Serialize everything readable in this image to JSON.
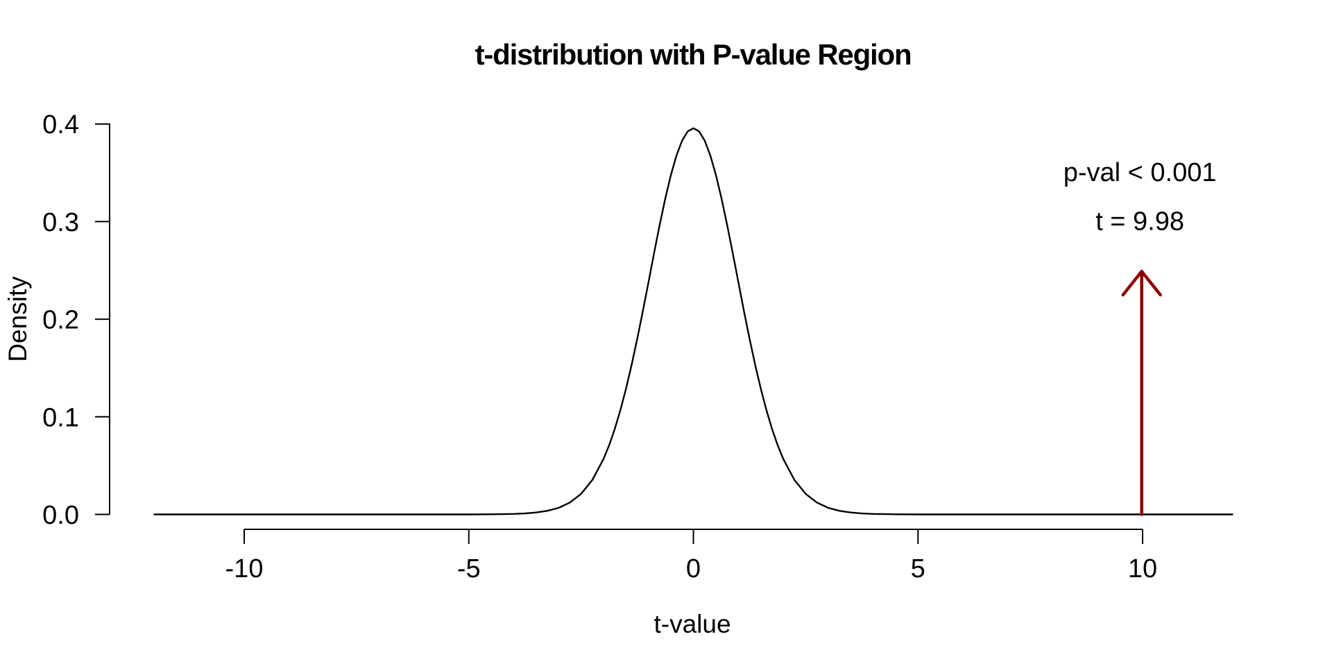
{
  "colors": {
    "background": "#FFFFFF",
    "text": "#000000",
    "curve": "#000000",
    "arrow": "#8B0000"
  },
  "chart_data": {
    "type": "line",
    "title": "t-distribution with P-value Region",
    "xlabel": "t-value",
    "ylabel": "Density",
    "xlim": [
      -12,
      12
    ],
    "ylim": [
      0,
      0.4
    ],
    "grid": false,
    "legend": "none",
    "x_ticks": {
      "values": [
        -10,
        -5,
        0,
        5,
        10
      ],
      "labels": [
        "-10",
        "-5",
        "0",
        "5",
        "10"
      ]
    },
    "y_ticks": {
      "values": [
        0,
        0.1,
        0.2,
        0.3,
        0.4
      ],
      "labels": [
        "0.0",
        "0.1",
        "0.2",
        "0.3",
        "0.4"
      ]
    },
    "series": [
      {
        "name": "t-density",
        "color": "#000000",
        "x": [
          -12,
          -10,
          -8,
          -7,
          -6,
          -5.5,
          -5,
          -4.5,
          -4,
          -3.75,
          -3.5,
          -3.25,
          -3,
          -2.75,
          -2.5,
          -2.25,
          -2,
          -1.875,
          -1.75,
          -1.625,
          -1.5,
          -1.375,
          -1.25,
          -1.125,
          -1,
          -0.875,
          -0.75,
          -0.625,
          -0.5,
          -0.375,
          -0.25,
          -0.125,
          0,
          0.125,
          0.25,
          0.375,
          0.5,
          0.625,
          0.75,
          0.875,
          1,
          1.125,
          1.25,
          1.375,
          1.5,
          1.625,
          1.75,
          1.875,
          2,
          2.25,
          2.5,
          2.75,
          3,
          3.25,
          3.5,
          3.75,
          4,
          4.5,
          5,
          5.5,
          6,
          7,
          8,
          10,
          12
        ],
        "y": [
          0,
          0,
          0,
          0,
          0,
          1e-05,
          3e-05,
          0.00013,
          0.00053,
          0.00102,
          0.00196,
          0.00369,
          0.00678,
          0.01213,
          0.02107,
          0.03524,
          0.05685,
          0.07101,
          0.0877,
          0.107,
          0.12898,
          0.1534,
          0.18008,
          0.20851,
          0.23796,
          0.2677,
          0.29665,
          0.32375,
          0.34788,
          0.36797,
          0.38307,
          0.39245,
          0.39563,
          0.39245,
          0.38307,
          0.36797,
          0.34788,
          0.32375,
          0.29665,
          0.2677,
          0.23796,
          0.20851,
          0.18008,
          0.1534,
          0.12898,
          0.107,
          0.0877,
          0.07101,
          0.05685,
          0.03524,
          0.02107,
          0.01213,
          0.00678,
          0.00369,
          0.00196,
          0.00102,
          0.00053,
          0.00013,
          3e-05,
          1e-05,
          0,
          0,
          0,
          0,
          0
        ]
      }
    ],
    "arrow": {
      "x": 9.98,
      "y_start": 0,
      "y_end": 0.249,
      "color": "#8B0000",
      "direction": "up"
    },
    "annotations": [
      {
        "id": "p-value",
        "text": "p-val < 0.001",
        "x": 9.94,
        "y": 0.351
      },
      {
        "id": "t-stat",
        "text": "t = 9.98",
        "x": 9.94,
        "y": 0.301
      }
    ]
  }
}
